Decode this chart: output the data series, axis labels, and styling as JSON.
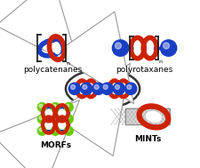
{
  "background_color": "#ffffff",
  "label_polycatenanes": "polycatenanes",
  "label_polyrotaxanes": "polyrotaxanes",
  "label_morfts": "MORFs",
  "label_mints": "MINTs",
  "blue": "#1a3fc4",
  "red": "#cc2200",
  "green": "#66cc00",
  "bracket_color": "#222222",
  "label_fontsize": 6.5,
  "figsize": [
    2.26,
    1.89
  ],
  "dpi": 100
}
